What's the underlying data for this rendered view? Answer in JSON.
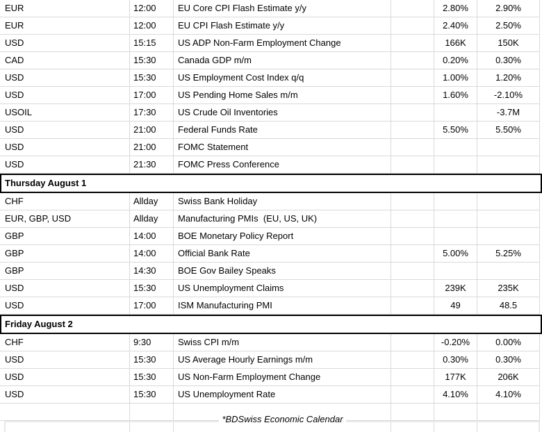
{
  "table": {
    "columns": [
      {
        "key": "currency",
        "label": ""
      },
      {
        "key": "time",
        "label": ""
      },
      {
        "key": "event",
        "label": ""
      },
      {
        "key": "blank",
        "label": ""
      },
      {
        "key": "forecast",
        "label": ""
      },
      {
        "key": "previous",
        "label": ""
      }
    ],
    "sections": [
      {
        "header": "",
        "rows": [
          {
            "currency": "EUR",
            "time": "12:00",
            "event": "EU Core CPI Flash Estimate y/y",
            "forecast": "2.80%",
            "previous": "2.90%"
          },
          {
            "currency": "EUR",
            "time": "12:00",
            "event": "EU CPI Flash Estimate y/y",
            "forecast": "2.40%",
            "previous": "2.50%"
          },
          {
            "currency": "USD",
            "time": "15:15",
            "event": "US ADP Non-Farm Employment Change",
            "forecast": "166K",
            "previous": "150K"
          },
          {
            "currency": "CAD",
            "time": "15:30",
            "event": "Canada GDP m/m",
            "forecast": "0.20%",
            "previous": "0.30%"
          },
          {
            "currency": "USD",
            "time": "15:30",
            "event": "US Employment Cost Index q/q",
            "forecast": "1.00%",
            "previous": "1.20%"
          },
          {
            "currency": "USD",
            "time": "17:00",
            "event": "US Pending Home Sales m/m",
            "forecast": "1.60%",
            "previous": "-2.10%"
          },
          {
            "currency": "USOIL",
            "time": "17:30",
            "event": "US Crude Oil Inventories",
            "forecast": "",
            "previous": "-3.7M"
          },
          {
            "currency": "USD",
            "time": "21:00",
            "event": "Federal Funds Rate",
            "forecast": "5.50%",
            "previous": "5.50%"
          },
          {
            "currency": "USD",
            "time": "21:00",
            "event": "FOMC Statement",
            "forecast": "",
            "previous": ""
          },
          {
            "currency": "USD",
            "time": "21:30",
            "event": "FOMC Press Conference",
            "forecast": "",
            "previous": ""
          }
        ]
      },
      {
        "header": "Thursday August 1",
        "rows": [
          {
            "currency": "CHF",
            "time": "Allday",
            "event": "Swiss Bank Holiday",
            "forecast": "",
            "previous": ""
          },
          {
            "currency": "EUR, GBP, USD",
            "time": "Allday",
            "event": "Manufacturing PMIs  (EU, US, UK)",
            "forecast": "",
            "previous": ""
          },
          {
            "currency": "GBP",
            "time": "14:00",
            "event": "BOE Monetary Policy Report",
            "forecast": "",
            "previous": ""
          },
          {
            "currency": "GBP",
            "time": "14:00",
            "event": "Official Bank Rate",
            "forecast": "5.00%",
            "previous": "5.25%"
          },
          {
            "currency": "GBP",
            "time": "14:30",
            "event": "BOE Gov Bailey Speaks",
            "forecast": "",
            "previous": ""
          },
          {
            "currency": "USD",
            "time": "15:30",
            "event": "US Unemployment Claims",
            "forecast": "239K",
            "previous": "235K"
          },
          {
            "currency": "USD",
            "time": "17:00",
            "event": "ISM Manufacturing PMI",
            "forecast": "49",
            "previous": "48.5"
          }
        ]
      },
      {
        "header": "Friday August 2",
        "rows": [
          {
            "currency": "CHF",
            "time": "9:30",
            "event": "Swiss CPI m/m",
            "forecast": "-0.20%",
            "previous": "0.00%"
          },
          {
            "currency": "USD",
            "time": "15:30",
            "event": "US Average Hourly Earnings m/m",
            "forecast": "0.30%",
            "previous": "0.30%"
          },
          {
            "currency": "USD",
            "time": "15:30",
            "event": "US Non-Farm Employment Change",
            "forecast": "177K",
            "previous": "206K"
          },
          {
            "currency": "USD",
            "time": "15:30",
            "event": "US Unemployment Rate",
            "forecast": "4.10%",
            "previous": "4.10%"
          }
        ]
      }
    ]
  },
  "footer": {
    "note": "*BDSwiss Economic Calendar"
  },
  "colors": {
    "text": "#000000",
    "background": "#ffffff",
    "gridline": "#d9d9d9",
    "day_header_border": "#000000",
    "embedded_box_border": "#e9e9e9"
  }
}
